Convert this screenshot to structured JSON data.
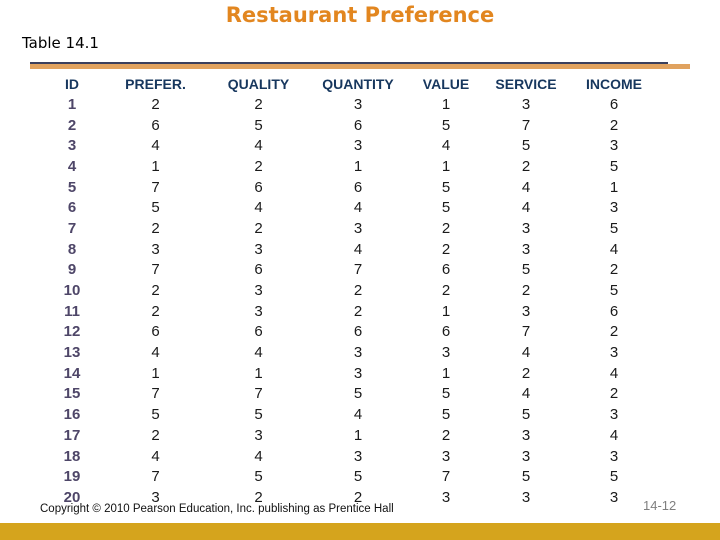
{
  "slide": {
    "title": "Restaurant Preference",
    "table_label": "Table 14.1",
    "footer": {
      "copyright": "Copyright © 2010 Pearson Education, Inc. publishing as Prentice Hall",
      "page_number": "14-12"
    },
    "colors": {
      "title_orange": "#E2861F",
      "header_navy": "#17375E",
      "id_purple": "#4E4668",
      "rule_tan": "#E0A25F",
      "rule_navy": "#3A3F5C",
      "bottom_bar_gold": "#D5A41D",
      "page_number_grey": "#7f7f7f",
      "data_black": "#1a1a1a"
    }
  },
  "chart_data": {
    "type": "table",
    "title": "Restaurant Preference",
    "columns": [
      "ID",
      "PREFER.",
      "QUALITY",
      "QUANTITY",
      "VALUE",
      "SERVICE",
      "INCOME"
    ],
    "rows": [
      [
        1,
        2,
        2,
        3,
        1,
        3,
        6
      ],
      [
        2,
        6,
        5,
        6,
        5,
        7,
        2
      ],
      [
        3,
        4,
        4,
        3,
        4,
        5,
        3
      ],
      [
        4,
        1,
        2,
        1,
        1,
        2,
        5
      ],
      [
        5,
        7,
        6,
        6,
        5,
        4,
        1
      ],
      [
        6,
        5,
        4,
        4,
        5,
        4,
        3
      ],
      [
        7,
        2,
        2,
        3,
        2,
        3,
        5
      ],
      [
        8,
        3,
        3,
        4,
        2,
        3,
        4
      ],
      [
        9,
        7,
        6,
        7,
        6,
        5,
        2
      ],
      [
        10,
        2,
        3,
        2,
        2,
        2,
        5
      ],
      [
        11,
        2,
        3,
        2,
        1,
        3,
        6
      ],
      [
        12,
        6,
        6,
        6,
        6,
        7,
        2
      ],
      [
        13,
        4,
        4,
        3,
        3,
        4,
        3
      ],
      [
        14,
        1,
        1,
        3,
        1,
        2,
        4
      ],
      [
        15,
        7,
        7,
        5,
        5,
        4,
        2
      ],
      [
        16,
        5,
        5,
        4,
        5,
        5,
        3
      ],
      [
        17,
        2,
        3,
        1,
        2,
        3,
        4
      ],
      [
        18,
        4,
        4,
        3,
        3,
        3,
        3
      ],
      [
        19,
        7,
        5,
        5,
        7,
        5,
        5
      ],
      [
        20,
        3,
        2,
        2,
        3,
        3,
        3
      ]
    ]
  }
}
